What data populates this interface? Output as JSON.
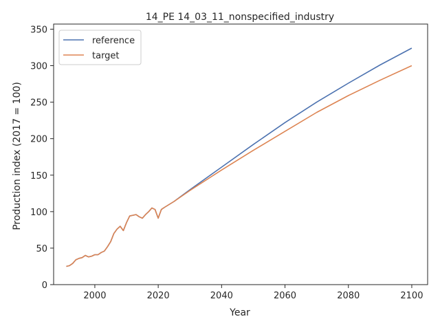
{
  "chart_data": {
    "type": "line",
    "title": "14_PE 14_03_11_nonspecified_industry",
    "xlabel": "Year",
    "ylabel": "Production index (2017 = 100)",
    "xlim": [
      1987,
      2105
    ],
    "ylim": [
      0,
      357
    ],
    "xticks": [
      "2000",
      "2020",
      "2040",
      "2060",
      "2080",
      "2100"
    ],
    "yticks": [
      "0",
      "50",
      "100",
      "150",
      "200",
      "250",
      "300",
      "350"
    ],
    "grid": false,
    "legend_position": "upper left",
    "series": [
      {
        "name": "reference",
        "color": "#4c72b0",
        "x": [
          1991,
          1992,
          1993,
          1994,
          1995,
          1996,
          1997,
          1998,
          1999,
          2000,
          2001,
          2002,
          2003,
          2004,
          2005,
          2006,
          2007,
          2008,
          2009,
          2010,
          2011,
          2012,
          2013,
          2014,
          2015,
          2016,
          2017,
          2018,
          2019,
          2020,
          2021,
          2022,
          2025,
          2030,
          2040,
          2050,
          2060,
          2070,
          2080,
          2090,
          2100
        ],
        "y": [
          25,
          26,
          29,
          34,
          36,
          37,
          40,
          38,
          39,
          41,
          41,
          44,
          46,
          52,
          59,
          70,
          76,
          80,
          74,
          85,
          94,
          95,
          96,
          93,
          91,
          96,
          100,
          105,
          103,
          91,
          103,
          106,
          114,
          130,
          161,
          192,
          222,
          250,
          276,
          301,
          324
        ]
      },
      {
        "name": "target",
        "color": "#dd8452",
        "x": [
          1991,
          1992,
          1993,
          1994,
          1995,
          1996,
          1997,
          1998,
          1999,
          2000,
          2001,
          2002,
          2003,
          2004,
          2005,
          2006,
          2007,
          2008,
          2009,
          2010,
          2011,
          2012,
          2013,
          2014,
          2015,
          2016,
          2017,
          2018,
          2019,
          2020,
          2021,
          2022,
          2025,
          2030,
          2040,
          2050,
          2060,
          2070,
          2080,
          2090,
          2100
        ],
        "y": [
          25,
          26,
          29,
          34,
          36,
          37,
          40,
          38,
          39,
          41,
          41,
          44,
          46,
          52,
          59,
          70,
          76,
          80,
          74,
          85,
          94,
          95,
          96,
          93,
          91,
          96,
          100,
          105,
          103,
          91,
          103,
          106,
          114,
          129,
          157,
          184,
          210,
          236,
          259,
          280,
          300
        ]
      }
    ]
  }
}
